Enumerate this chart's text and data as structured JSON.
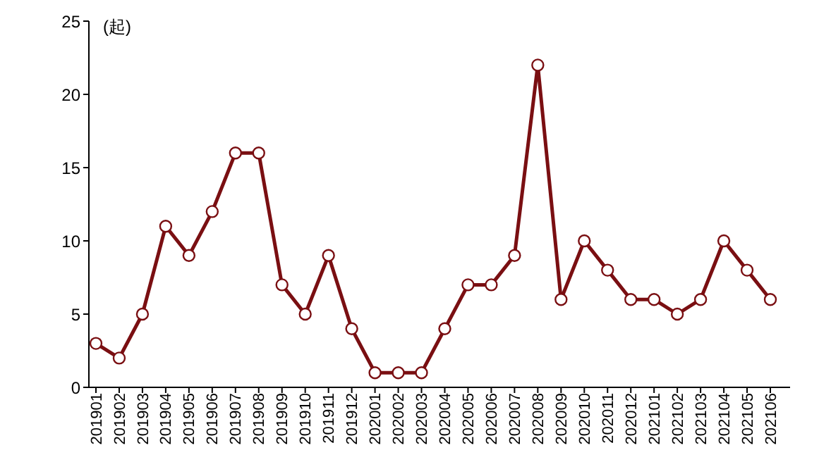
{
  "chart_data": {
    "type": "line",
    "ylabel": "(起)",
    "categories": [
      "201901",
      "201902",
      "201903",
      "201904",
      "201905",
      "201906",
      "201907",
      "201908",
      "201909",
      "201910",
      "201911",
      "201912",
      "202001",
      "202002",
      "202003",
      "202004",
      "202005",
      "202006",
      "202007",
      "202008",
      "202009",
      "202010",
      "202011",
      "202012",
      "202101",
      "202102",
      "202103",
      "202104",
      "202105",
      "202106"
    ],
    "series": [
      {
        "color": "#7a0f12",
        "values": [
          3,
          2,
          5,
          11,
          9,
          12,
          16,
          16,
          7,
          5,
          9,
          4,
          1,
          1,
          1,
          4,
          7,
          7,
          9,
          22,
          6,
          10,
          8,
          6,
          6,
          5,
          6,
          10,
          8,
          6
        ]
      }
    ],
    "ylim": [
      0,
      25
    ],
    "yticks": [
      0,
      5,
      10,
      15,
      20,
      25
    ],
    "grid": false,
    "legend": false,
    "marker": "circle",
    "line_style": "solid"
  }
}
